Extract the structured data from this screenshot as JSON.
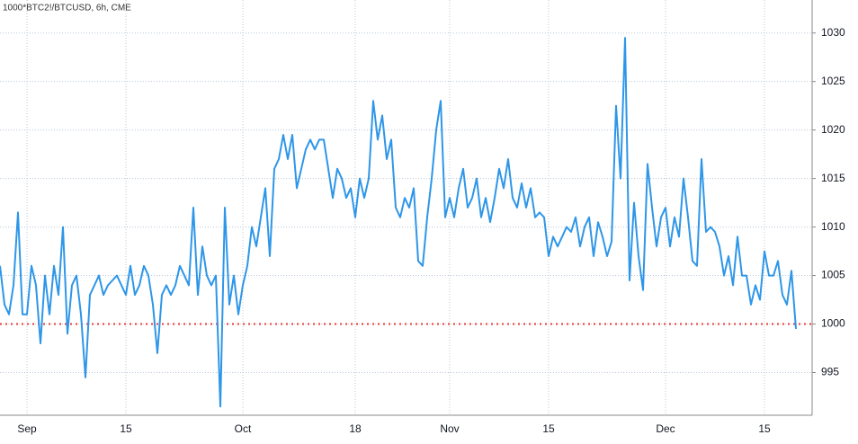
{
  "chart_data": {
    "type": "line",
    "title": "1000*BTC2!/BTCUSD, 6h, CME",
    "categories": [
      null,
      null,
      null,
      null,
      null,
      null,
      "Sep",
      null,
      null,
      null,
      null,
      null,
      null,
      null,
      null,
      null,
      null,
      null,
      null,
      null,
      null,
      null,
      null,
      null,
      null,
      null,
      null,
      null,
      "15",
      null,
      null,
      null,
      null,
      null,
      null,
      null,
      null,
      null,
      null,
      null,
      null,
      null,
      null,
      null,
      null,
      null,
      null,
      null,
      null,
      null,
      null,
      null,
      null,
      null,
      "Oct",
      null,
      null,
      null,
      null,
      null,
      null,
      null,
      null,
      null,
      null,
      null,
      null,
      null,
      null,
      null,
      null,
      null,
      null,
      null,
      null,
      null,
      null,
      null,
      null,
      "18",
      null,
      null,
      null,
      null,
      null,
      null,
      null,
      null,
      null,
      null,
      null,
      null,
      null,
      null,
      null,
      null,
      null,
      null,
      null,
      null,
      "Nov",
      null,
      null,
      null,
      null,
      null,
      null,
      null,
      null,
      null,
      null,
      null,
      null,
      null,
      null,
      null,
      null,
      null,
      null,
      null,
      null,
      null,
      "15",
      null,
      null,
      null,
      null,
      null,
      null,
      null,
      null,
      null,
      null,
      null,
      null,
      null,
      null,
      null,
      null,
      null,
      null,
      null,
      null,
      null,
      null,
      null,
      null,
      null,
      "Dec",
      null,
      null,
      null,
      null,
      null,
      null,
      null,
      null,
      null,
      null,
      null,
      null,
      null,
      null,
      null,
      null,
      null,
      null,
      null,
      null,
      null,
      "15",
      null,
      null,
      null,
      null,
      null,
      null,
      null
    ],
    "series": [
      {
        "name": "1000*BTC2!/BTCUSD",
        "color": "#2e96e8",
        "values": [
          1006,
          1002,
          1001,
          1004,
          1011.5,
          1001,
          1001,
          1006,
          1004,
          998,
          1005,
          1001,
          1006,
          1003,
          1010,
          999,
          1004,
          1005,
          1001,
          994.5,
          1003,
          1004,
          1005,
          1003,
          1004,
          1004.5,
          1005,
          1004,
          1003,
          1006,
          1003,
          1004,
          1006,
          1005,
          1002,
          997,
          1003,
          1004,
          1003,
          1004,
          1006,
          1005,
          1004,
          1012,
          1003,
          1008,
          1005,
          1004,
          1005,
          991.5,
          1012,
          1002,
          1005,
          1001,
          1004,
          1006,
          1010,
          1008,
          1011,
          1014,
          1007,
          1016,
          1017,
          1019.5,
          1017,
          1019.5,
          1014,
          1016,
          1018,
          1019,
          1018,
          1019,
          1019,
          1016,
          1013,
          1016,
          1015,
          1013,
          1014,
          1011,
          1015,
          1013,
          1015,
          1023,
          1019,
          1021.5,
          1017,
          1019,
          1012,
          1011,
          1013,
          1012,
          1014,
          1006.5,
          1006,
          1011,
          1015,
          1020,
          1023,
          1011,
          1013,
          1011,
          1014,
          1016,
          1012,
          1013,
          1015,
          1011,
          1013,
          1010.5,
          1013,
          1016,
          1014,
          1017,
          1013,
          1012,
          1014.5,
          1012,
          1014,
          1011,
          1011.5,
          1011,
          1007,
          1009,
          1008,
          1009,
          1010,
          1009.5,
          1011,
          1008,
          1010,
          1011,
          1007,
          1010.5,
          1009,
          1007,
          1008.5,
          1022.5,
          1015,
          1029.5,
          1004.5,
          1012.5,
          1007,
          1003.5,
          1016.5,
          1012,
          1008,
          1011,
          1012,
          1008,
          1011,
          1009,
          1015,
          1011,
          1006.5,
          1006,
          1017,
          1009.5,
          1010,
          1009.5,
          1008,
          1005,
          1007,
          1004,
          1009,
          1005,
          1005,
          1002,
          1004,
          1002.5,
          1007.5,
          1005,
          1005,
          1006.5,
          1003,
          1002,
          1005.5,
          999.5
        ]
      }
    ],
    "reference_line": {
      "value": 1000,
      "color": "#e53935"
    },
    "ylim": [
      990.6,
      1033.4
    ],
    "yticks": [
      995,
      1000,
      1005,
      1010,
      1015,
      1020,
      1025,
      1030
    ],
    "grid": true
  }
}
